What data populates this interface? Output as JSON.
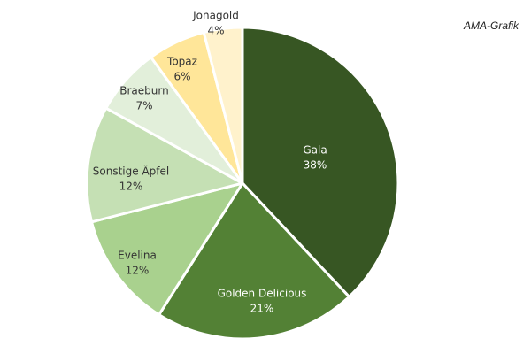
{
  "source_label": "AMA-Grafik",
  "chart_data": {
    "type": "pie",
    "title": "",
    "legend": "none",
    "start_angle_deg": 0,
    "direction": "clockwise",
    "slices": [
      {
        "label": "Gala",
        "value": 38,
        "value_label": "38%",
        "color": "#375623",
        "text_color": "#ffffff"
      },
      {
        "label": "Golden Delicious",
        "value": 21,
        "value_label": "21%",
        "color": "#538135",
        "text_color": "#ffffff"
      },
      {
        "label": "Evelina",
        "value": 12,
        "value_label": "12%",
        "color": "#a9d18e",
        "text_color": "#333333"
      },
      {
        "label": "Sonstige Äpfel",
        "value": 12,
        "value_label": "12%",
        "color": "#c5e0b4",
        "text_color": "#333333"
      },
      {
        "label": "Braeburn",
        "value": 7,
        "value_label": "7%",
        "color": "#e2efda",
        "text_color": "#333333"
      },
      {
        "label": "Topaz",
        "value": 6,
        "value_label": "6%",
        "color": "#ffe699",
        "text_color": "#333333"
      },
      {
        "label": "Jonagold",
        "value": 4,
        "value_label": "4%",
        "color": "#fff2cc",
        "text_color": "#333333"
      }
    ]
  }
}
